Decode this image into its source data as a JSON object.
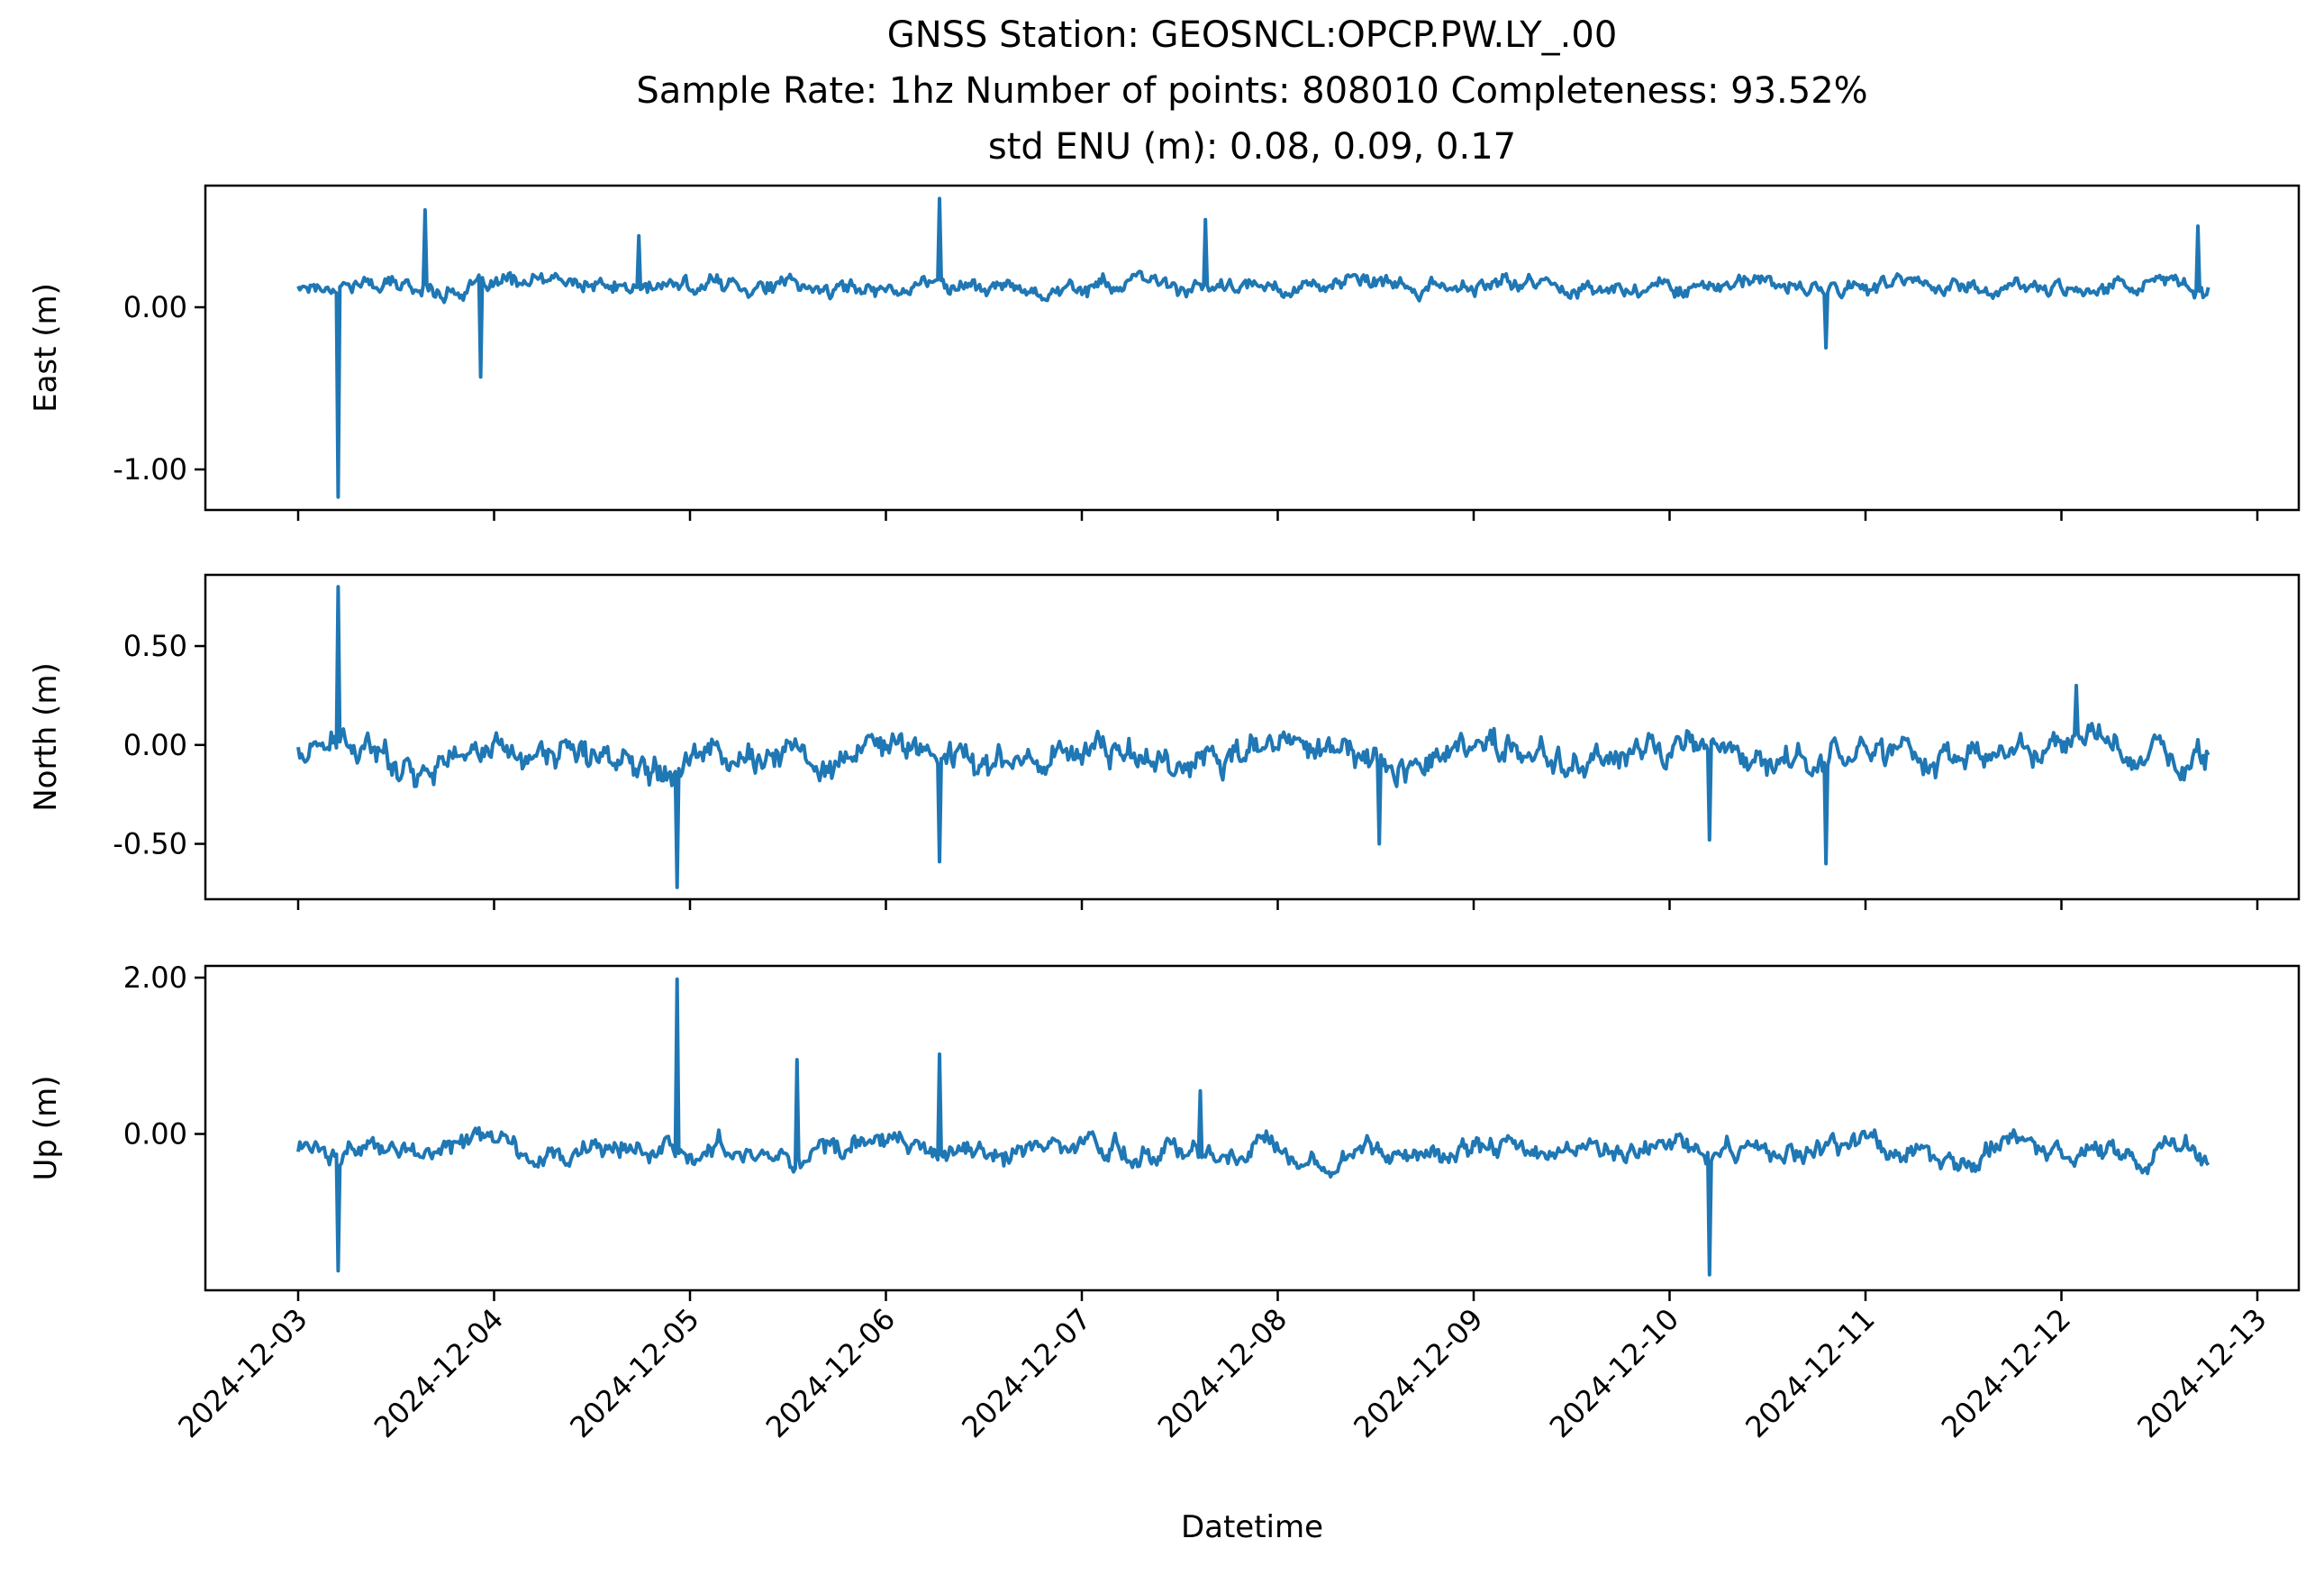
{
  "title": {
    "line1": "GNSS Station: GEOSNCL:OPCP.PW.LY_.00",
    "line2": "Sample Rate: 1hz   Number of points: 808010    Completeness:  93.52%",
    "line3": "std ENU (m):  0.08, 0.09, 0.17"
  },
  "chart_data": {
    "type": "line",
    "series_color": "#1f77b4",
    "xlabel": "Datetime",
    "x_ticks": [
      "2024-12-03",
      "2024-12-04",
      "2024-12-05",
      "2024-12-06",
      "2024-12-07",
      "2024-12-08",
      "2024-12-09",
      "2024-12-10",
      "2024-12-11",
      "2024-12-12",
      "2024-12-13"
    ],
    "x_start": "2024-12-03",
    "x_end": "2024-12-12.75",
    "panels": [
      {
        "ylabel": "East (m)",
        "ylim": [
          -1.25,
          0.75
        ],
        "yticks": [
          0.0,
          -1.0
        ],
        "ytick_labels": [
          "0.00",
          "-1.00"
        ],
        "baseline": 0.13,
        "noise": 0.05,
        "spikes": [
          {
            "t": 0.2,
            "v": -1.17
          },
          {
            "t": 0.65,
            "v": 0.6
          },
          {
            "t": 0.93,
            "v": -0.43
          },
          {
            "t": 1.74,
            "v": 0.44
          },
          {
            "t": 3.27,
            "v": 0.67
          },
          {
            "t": 4.63,
            "v": 0.54
          },
          {
            "t": 7.8,
            "v": -0.25
          },
          {
            "t": 9.7,
            "v": 0.5
          }
        ]
      },
      {
        "ylabel": "North (m)",
        "ylim": [
          -0.78,
          0.86
        ],
        "yticks": [
          0.5,
          0.0,
          -0.5
        ],
        "ytick_labels": [
          "0.50",
          "0.00",
          "-0.50"
        ],
        "baseline": -0.05,
        "noise": 0.08,
        "spikes": [
          {
            "t": 0.2,
            "v": 0.8
          },
          {
            "t": 1.93,
            "v": -0.72
          },
          {
            "t": 3.27,
            "v": -0.59
          },
          {
            "t": 5.52,
            "v": -0.5
          },
          {
            "t": 7.2,
            "v": -0.48
          },
          {
            "t": 7.8,
            "v": -0.6
          },
          {
            "t": 9.08,
            "v": 0.3
          }
        ]
      },
      {
        "ylabel": "Up (m)",
        "ylim": [
          -2.0,
          2.15
        ],
        "yticks": [
          2.0,
          0.0
        ],
        "ytick_labels": [
          "2.00",
          "0.00"
        ],
        "baseline": -0.2,
        "noise": 0.14,
        "spikes": [
          {
            "t": 0.2,
            "v": -1.75
          },
          {
            "t": 1.93,
            "v": 1.98
          },
          {
            "t": 2.55,
            "v": 0.95
          },
          {
            "t": 3.27,
            "v": 1.02
          },
          {
            "t": 4.6,
            "v": 0.55
          },
          {
            "t": 7.2,
            "v": -1.8
          }
        ]
      }
    ]
  }
}
